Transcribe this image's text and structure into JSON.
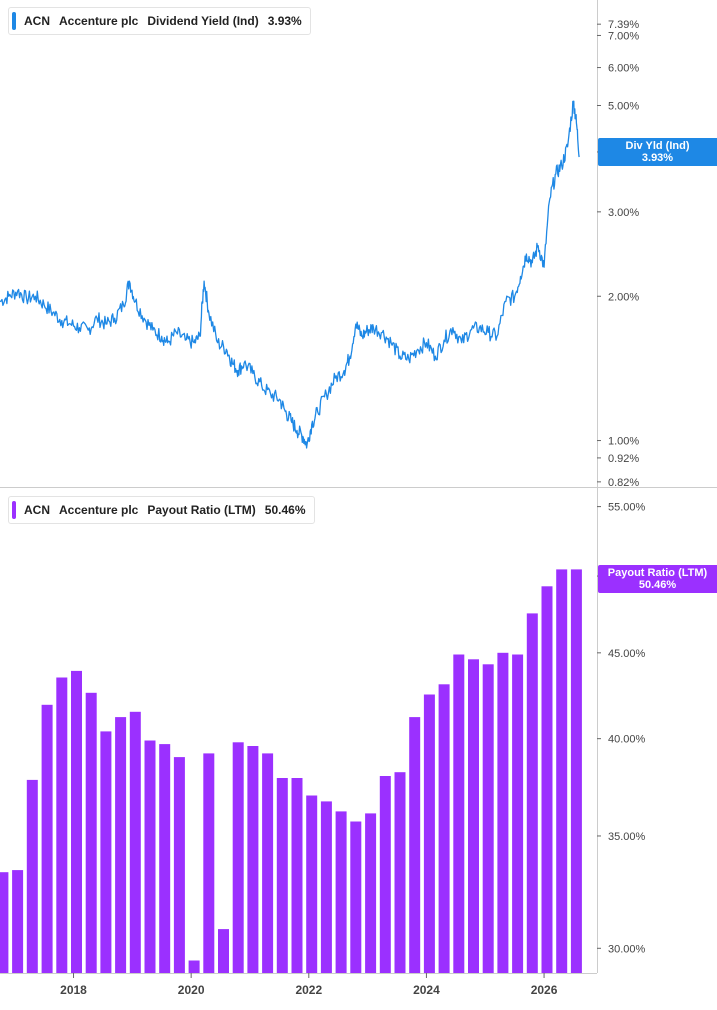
{
  "colors": {
    "yield": "#1e88e5",
    "payout": "#9b30ff",
    "axis": "#666666",
    "grid": "#cccccc"
  },
  "top_legend": {
    "ticker": "ACN",
    "company": "Accenture plc",
    "metric": "Dividend Yield (Ind)",
    "value": "3.93%"
  },
  "bottom_legend": {
    "ticker": "ACN",
    "company": "Accenture plc",
    "metric": "Payout Ratio (LTM)",
    "value": "50.46%"
  },
  "top_flag": {
    "label": "Div Yld (Ind)",
    "value": "3.93%"
  },
  "bottom_flag": {
    "label": "Payout Ratio (LTM)",
    "value": "50.46%"
  },
  "chart_data": [
    {
      "type": "line",
      "title": "Dividend Yield (Ind)",
      "scale": "log",
      "ylim": [
        0.8,
        8.3
      ],
      "xlim": [
        2016.75,
        2026.9
      ],
      "y_ticks": [
        "7.39%",
        "7.00%",
        "6.00%",
        "5.00%",
        "4.00%",
        "3.00%",
        "2.00%",
        "1.00%",
        "0.92%",
        "0.82%"
      ],
      "y_tick_values": [
        7.39,
        7.0,
        6.0,
        5.0,
        4.0,
        3.0,
        2.0,
        1.0,
        0.92,
        0.82
      ],
      "series": [
        {
          "name": "Dividend Yield (Ind)",
          "x": [
            2016.75,
            2016.9,
            2017.05,
            2017.2,
            2017.35,
            2017.5,
            2017.65,
            2017.8,
            2017.95,
            2018.1,
            2018.25,
            2018.4,
            2018.55,
            2018.7,
            2018.85,
            2018.95,
            2019.05,
            2019.2,
            2019.35,
            2019.5,
            2019.6,
            2019.75,
            2019.9,
            2020.05,
            2020.15,
            2020.22,
            2020.3,
            2020.45,
            2020.6,
            2020.7,
            2020.8,
            2020.9,
            2021.05,
            2021.2,
            2021.35,
            2021.5,
            2021.6,
            2021.7,
            2021.8,
            2021.9,
            2021.97,
            2022.05,
            2022.15,
            2022.3,
            2022.45,
            2022.6,
            2022.7,
            2022.8,
            2022.9,
            2023.0,
            2023.1,
            2023.25,
            2023.4,
            2023.55,
            2023.7,
            2023.85,
            2024.0,
            2024.15,
            2024.3,
            2024.45,
            2024.6,
            2024.75,
            2024.9,
            2025.05,
            2025.2,
            2025.35,
            2025.5,
            2025.6,
            2025.7,
            2025.8,
            2025.9,
            2026.0,
            2026.1,
            2026.2,
            2026.3,
            2026.4,
            2026.5,
            2026.55,
            2026.6
          ],
          "values": [
            1.95,
            2.0,
            2.05,
            1.98,
            2.0,
            1.92,
            1.85,
            1.78,
            1.75,
            1.72,
            1.7,
            1.8,
            1.75,
            1.8,
            1.92,
            2.15,
            1.95,
            1.8,
            1.7,
            1.65,
            1.6,
            1.68,
            1.62,
            1.6,
            1.65,
            2.15,
            1.85,
            1.6,
            1.55,
            1.45,
            1.4,
            1.45,
            1.38,
            1.3,
            1.25,
            1.22,
            1.15,
            1.1,
            1.05,
            1.02,
            0.98,
            1.08,
            1.15,
            1.25,
            1.35,
            1.4,
            1.5,
            1.75,
            1.65,
            1.7,
            1.72,
            1.68,
            1.6,
            1.5,
            1.48,
            1.55,
            1.6,
            1.5,
            1.62,
            1.72,
            1.6,
            1.7,
            1.72,
            1.68,
            1.65,
            1.95,
            2.0,
            2.2,
            2.45,
            2.35,
            2.55,
            2.3,
            3.2,
            3.6,
            3.75,
            4.1,
            5.1,
            4.6,
            3.93
          ]
        }
      ]
    },
    {
      "type": "bar",
      "title": "Payout Ratio (LTM)",
      "scale": "log",
      "ylim": [
        29.0,
        56.5
      ],
      "y_ticks": [
        "55.00%",
        "50.00%",
        "45.00%",
        "40.00%",
        "35.00%",
        "30.00%"
      ],
      "y_tick_values": [
        55.0,
        50.0,
        45.0,
        40.0,
        35.0,
        30.0
      ],
      "x_ticks": [
        "2018",
        "2020",
        "2022",
        "2024",
        "2026"
      ],
      "x_tick_values": [
        2018,
        2020,
        2022,
        2024,
        2026
      ],
      "series": [
        {
          "name": "Payout Ratio (LTM)",
          "x": [
            2016.8,
            2017.05,
            2017.3,
            2017.55,
            2017.8,
            2018.05,
            2018.3,
            2018.55,
            2018.8,
            2019.05,
            2019.3,
            2019.55,
            2019.8,
            2020.05,
            2020.3,
            2020.55,
            2020.8,
            2021.05,
            2021.3,
            2021.55,
            2021.8,
            2022.05,
            2022.3,
            2022.55,
            2022.8,
            2023.05,
            2023.3,
            2023.55,
            2023.8,
            2024.05,
            2024.3,
            2024.55,
            2024.8,
            2025.05,
            2025.3,
            2025.55,
            2025.8,
            2026.05,
            2026.3,
            2026.55
          ],
          "values": [
            33.3,
            33.4,
            37.8,
            41.9,
            43.5,
            43.9,
            42.6,
            40.4,
            41.2,
            41.5,
            39.9,
            39.7,
            39.0,
            29.5,
            39.2,
            30.8,
            39.8,
            39.6,
            39.2,
            37.9,
            37.9,
            37.0,
            36.7,
            36.2,
            35.7,
            36.1,
            38.0,
            38.2,
            41.2,
            42.5,
            43.1,
            44.9,
            44.6,
            44.3,
            45.0,
            44.9,
            47.5,
            49.3,
            50.46,
            50.46
          ]
        }
      ]
    }
  ]
}
